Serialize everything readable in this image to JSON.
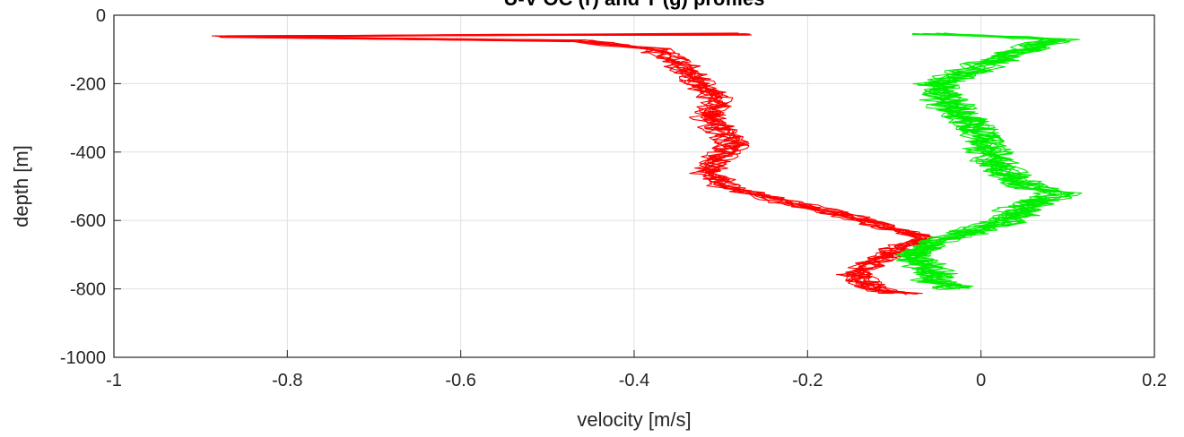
{
  "chart_data": {
    "type": "line",
    "title": "U-V OC (r) and T (g) profiles",
    "xlabel": "velocity [m/s]",
    "ylabel": "depth [m]",
    "xlim": [
      -1,
      0.2
    ],
    "ylim": [
      -1000,
      0
    ],
    "xticks": [
      -1,
      -0.8,
      -0.6,
      -0.4,
      -0.2,
      0,
      0.2
    ],
    "xtick_labels": [
      "-1",
      "-0.8",
      "-0.6",
      "-0.4",
      "-0.2",
      "0",
      "0.2"
    ],
    "yticks": [
      0,
      -200,
      -400,
      -600,
      -800,
      -1000
    ],
    "ytick_labels": [
      "0",
      "-200",
      "-400",
      "-600",
      "-800",
      "-1000"
    ],
    "grid": true,
    "colors": {
      "red_series": "#ff0000",
      "green_series": "#00ee00",
      "grid": "#e0e0e0",
      "axis": "#262626"
    },
    "series": [
      {
        "color": "red",
        "profile_count": 10,
        "depth": [
          -55,
          -62,
          -75,
          -100,
          -150,
          -200,
          -250,
          -300,
          -350,
          -380,
          -420,
          -460,
          -500,
          -540,
          -580,
          -620,
          -650,
          -680,
          -720,
          -760,
          -800,
          -815
        ],
        "velocity": [
          -0.27,
          -0.87,
          -0.46,
          -0.37,
          -0.34,
          -0.32,
          -0.3,
          -0.31,
          -0.29,
          -0.28,
          -0.3,
          -0.31,
          -0.29,
          -0.23,
          -0.16,
          -0.1,
          -0.06,
          -0.09,
          -0.12,
          -0.14,
          -0.12,
          -0.08
        ]
      },
      {
        "color": "green",
        "profile_count": 10,
        "depth": [
          -55,
          -70,
          -100,
          -150,
          -200,
          -250,
          -300,
          -350,
          -400,
          -450,
          -500,
          -520,
          -560,
          -600,
          -640,
          -660,
          -700,
          -740,
          -780,
          -800
        ],
        "velocity": [
          -0.06,
          0.09,
          0.05,
          0.0,
          -0.05,
          -0.04,
          -0.02,
          0.0,
          0.01,
          0.02,
          0.05,
          0.09,
          0.05,
          0.03,
          -0.02,
          -0.05,
          -0.08,
          -0.06,
          -0.05,
          -0.03
        ]
      }
    ]
  }
}
